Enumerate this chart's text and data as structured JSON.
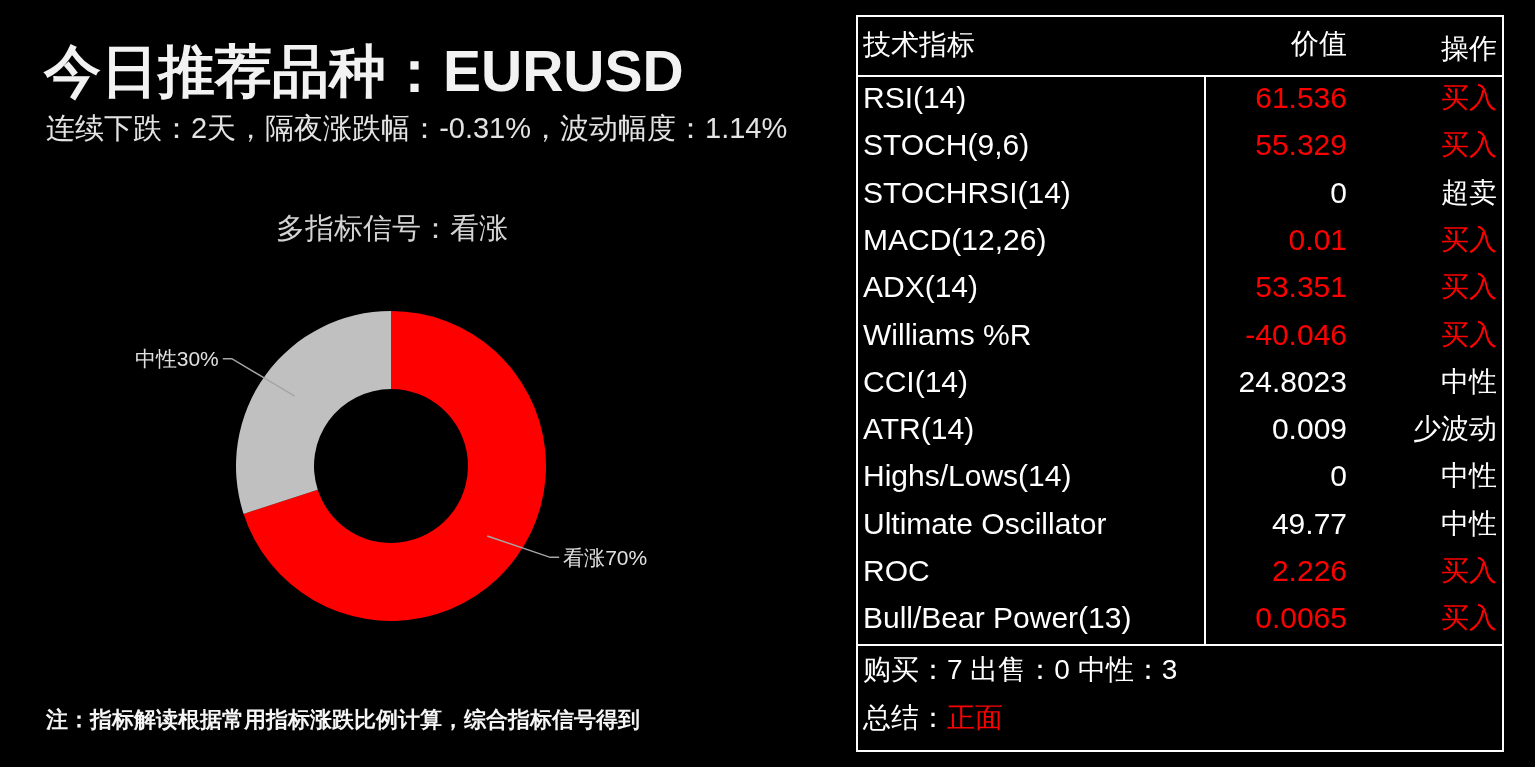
{
  "chart_data": [
    {
      "type": "donut",
      "title": "今日推荐品种：EURUSD",
      "subtitle": "连续下跌：2天，隔夜涨跌幅：-0.31%，波动幅度：1.14%",
      "categories": [
        "看涨",
        "中性"
      ],
      "values": [
        70,
        30
      ],
      "colors": [
        "#ff0000",
        "#c0c0c0"
      ],
      "value_labels": [
        "70%",
        "30%"
      ],
      "annotations": [
        "多指标信号：看涨",
        "注：指标解读根据常用指标涨跌比例计算，综合指标信号得到"
      ]
    },
    {
      "type": "other",
      "ylabel": "技术指标",
      "y2label": "操作",
      "categories": [
        "RSI(14)",
        "STOCH(9,6)",
        "STOCHRSI(14)",
        "MACD(12,26)",
        "ADX(14)",
        "Williams %R",
        "CCI(14)",
        "ATR(14)",
        "Highs/Lows(14)",
        "Ultimate Oscillator",
        "ROC",
        "Bull/Bear Power(13)"
      ],
      "y2_categories": [
        "买入",
        "买入",
        "超卖",
        "买入",
        "买入",
        "买入",
        "中性",
        "少波动",
        "中性",
        "中性",
        "买入",
        "买入"
      ],
      "series": [
        {
          "name": "价值",
          "values": [
            61.536,
            55.329,
            0,
            0.01,
            53.351,
            -40.046,
            24.8023,
            0.009,
            0,
            49.77,
            2.226,
            0.0065
          ],
          "colors": [
            "#ff0000",
            "#ff0000",
            "#ffffff",
            "#ff0000",
            "#ff0000",
            "#ff0000",
            "#ffffff",
            "#ffffff",
            "#ffffff",
            "#ffffff",
            "#ff0000",
            "#ff0000"
          ]
        }
      ],
      "data_labels": true,
      "annotations": [
        "购买：7 出售：0 中性：3",
        "总结：",
        "正面"
      ]
    }
  ]
}
